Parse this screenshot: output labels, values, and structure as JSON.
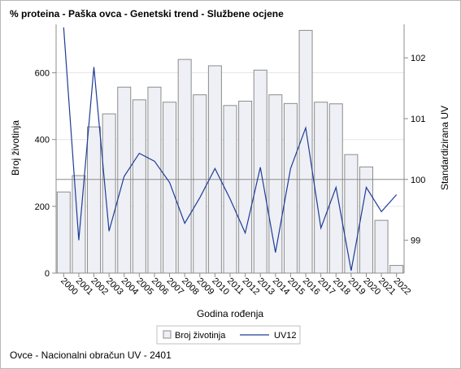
{
  "title": "% proteina - Paška ovca - Genetski trend - Službene ocjene",
  "footer": "Ovce - Nacionalni obračun UV - 2401",
  "colors": {
    "bar_fill": "#eef0f6",
    "bar_stroke": "#8c8c8c",
    "line": "#1f3c95",
    "reference_line": "#8c8c8c",
    "grid": "#e6e6e6",
    "axis": "#8c8c8c"
  },
  "chart_data": {
    "type": "bar",
    "xlabel": "Godina rođenja",
    "ylabel": "Broj životinja",
    "y2label": "Standardizirana UV",
    "categories": [
      "2000",
      "2001",
      "2002",
      "2003",
      "2004",
      "2005",
      "2006",
      "2007",
      "2008",
      "2009",
      "2010",
      "2011",
      "2012",
      "2013",
      "2014",
      "2015",
      "2016",
      "2017",
      "2018",
      "2019",
      "2020",
      "2021",
      "2022"
    ],
    "ylim": [
      0,
      745
    ],
    "y_ticks": [
      0,
      200,
      400,
      600
    ],
    "y2lim": [
      98.46,
      102.55
    ],
    "y2_ticks": [
      99,
      100,
      101,
      102
    ],
    "reference_line_y2": 100,
    "grid": true,
    "legend_position": "bottom",
    "series": [
      {
        "name": "Broj životinja",
        "type": "bar",
        "axis": "y",
        "values": [
          243,
          292,
          438,
          477,
          557,
          519,
          557,
          512,
          640,
          534,
          621,
          502,
          515,
          608,
          534,
          508,
          727,
          512,
          507,
          355,
          318,
          158,
          23
        ]
      },
      {
        "name": "UV12",
        "type": "line",
        "axis": "y2",
        "values": [
          102.5,
          99.0,
          101.85,
          99.15,
          100.05,
          100.43,
          100.3,
          99.95,
          99.28,
          99.7,
          100.18,
          99.68,
          99.12,
          100.2,
          98.8,
          100.18,
          100.85,
          99.2,
          99.87,
          98.5,
          99.87,
          99.47,
          99.75
        ]
      }
    ]
  }
}
